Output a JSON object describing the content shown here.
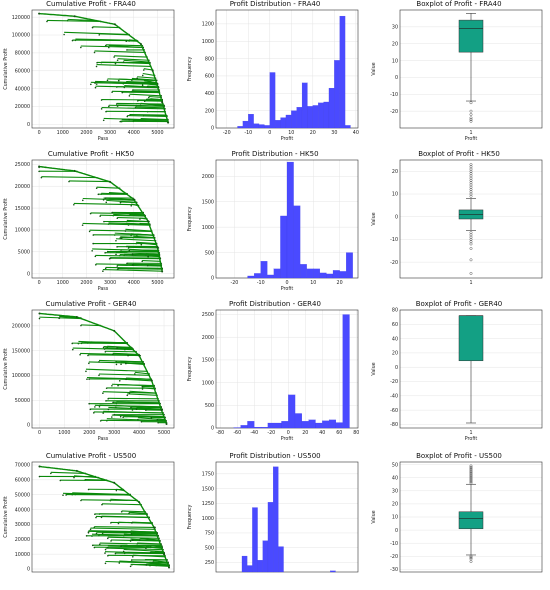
{
  "chart_data": [
    {
      "type": "line",
      "title": "Cumulative Profit - FRA40",
      "xlabel": "Pass",
      "ylabel": "Cumulative Profit",
      "xlim": [
        -300,
        5700
      ],
      "ylim": [
        -4000,
        128000
      ],
      "xticks": [
        0,
        1000,
        2000,
        3000,
        4000,
        5000
      ],
      "yticks": [
        0,
        20000,
        40000,
        60000,
        80000,
        100000,
        120000
      ],
      "color": "#0a8a0a",
      "series": [
        {
          "x": [
            0,
            1500,
            3200,
            4300,
            4800,
            5200,
            5450
          ],
          "y": [
            124000,
            121000,
            112000,
            90000,
            60000,
            25000,
            2000
          ]
        }
      ]
    },
    {
      "type": "bar",
      "title": "Profit Distribution - FRA40",
      "xlabel": "Profit",
      "ylabel": "Frequency",
      "xlim": [
        -25,
        41
      ],
      "ylim": [
        0,
        1360
      ],
      "xticks": [
        -20,
        -10,
        0,
        10,
        20,
        30,
        40
      ],
      "yticks": [
        0,
        200,
        400,
        600,
        800,
        1000,
        1200
      ],
      "color": "#4a4aff",
      "bins": [
        [
          -20,
          -17.5,
          0
        ],
        [
          -17.5,
          -15,
          0
        ],
        [
          -15,
          -12.5,
          20
        ],
        [
          -12.5,
          -10,
          80
        ],
        [
          -10,
          -7.5,
          160
        ],
        [
          -7.5,
          -5,
          50
        ],
        [
          -5,
          -2.5,
          40
        ],
        [
          -2.5,
          0,
          30
        ],
        [
          0,
          2.5,
          640
        ],
        [
          2.5,
          5,
          90
        ],
        [
          5,
          7.5,
          120
        ],
        [
          7.5,
          10,
          150
        ],
        [
          10,
          12.5,
          200
        ],
        [
          12.5,
          15,
          240
        ],
        [
          15,
          17.5,
          520
        ],
        [
          17.5,
          20,
          250
        ],
        [
          20,
          22.5,
          260
        ],
        [
          22.5,
          25,
          290
        ],
        [
          25,
          27.5,
          300
        ],
        [
          27.5,
          30,
          460
        ],
        [
          30,
          32.5,
          780
        ],
        [
          32.5,
          35,
          1290
        ],
        [
          35,
          37.5,
          30
        ]
      ]
    },
    {
      "type": "box",
      "title": "Boxplot of Profit - FRA40",
      "xlabel": "Profit",
      "ylabel": "Value",
      "ylim": [
        -30,
        40
      ],
      "yticks": [
        -20,
        -10,
        0,
        10,
        20,
        30
      ],
      "category": "1",
      "box": {
        "q1": 15,
        "median": 29,
        "q3": 34,
        "whisker_low": -14,
        "whisker_high": 38
      },
      "outliers": [
        -15,
        -20,
        -22,
        -24,
        -25,
        -26
      ],
      "color": "#13a084"
    },
    {
      "type": "line",
      "title": "Cumulative Profit - HK50",
      "xlabel": "Pass",
      "ylabel": "Cumulative Profit",
      "xlim": [
        -300,
        5700
      ],
      "ylim": [
        -1000,
        26000
      ],
      "xticks": [
        0,
        1000,
        2000,
        3000,
        4000,
        5000
      ],
      "yticks": [
        0,
        5000,
        10000,
        15000,
        20000,
        25000
      ],
      "color": "#0a8a0a",
      "series": [
        {
          "x": [
            0,
            1500,
            3000,
            4000,
            4600,
            5000,
            5200
          ],
          "y": [
            24500,
            23500,
            21000,
            17000,
            12000,
            6000,
            500
          ]
        }
      ]
    },
    {
      "type": "bar",
      "title": "Profit Distribution - HK50",
      "xlabel": "Profit",
      "ylabel": "Frequency",
      "xlim": [
        -27,
        27
      ],
      "ylim": [
        0,
        2320
      ],
      "xticks": [
        -20,
        -10,
        0,
        10,
        20
      ],
      "yticks": [
        0,
        500,
        1000,
        1500,
        2000
      ],
      "color": "#4a4aff",
      "bins": [
        [
          -20,
          -17.5,
          0
        ],
        [
          -17.5,
          -15,
          0
        ],
        [
          -15,
          -12.5,
          40
        ],
        [
          -12.5,
          -10,
          90
        ],
        [
          -10,
          -7.5,
          330
        ],
        [
          -7.5,
          -5,
          60
        ],
        [
          -5,
          -2.5,
          180
        ],
        [
          -2.5,
          0,
          1220
        ],
        [
          0,
          2.5,
          2280
        ],
        [
          2.5,
          5,
          1420
        ],
        [
          5,
          7.5,
          270
        ],
        [
          7.5,
          10,
          180
        ],
        [
          10,
          12.5,
          180
        ],
        [
          12.5,
          15,
          100
        ],
        [
          15,
          17.5,
          80
        ],
        [
          17.5,
          20,
          150
        ],
        [
          20,
          22.5,
          130
        ],
        [
          22.5,
          25,
          500
        ]
      ]
    },
    {
      "type": "box",
      "title": "Boxplot of Profit - HK50",
      "xlabel": "",
      "ylabel": "Value",
      "ylim": [
        -27,
        25
      ],
      "yticks": [
        -20,
        -10,
        0,
        10,
        20
      ],
      "category": "1",
      "box": {
        "q1": -1,
        "median": 1,
        "q3": 3,
        "whisker_low": -6,
        "whisker_high": 8
      },
      "outliers": [
        9,
        10,
        11,
        12,
        13,
        14,
        15,
        16,
        17,
        18,
        19,
        20,
        21,
        22,
        23,
        -7,
        -8,
        -9,
        -10,
        -11,
        -12,
        -14,
        -19,
        -25
      ],
      "color": "#13a084"
    },
    {
      "type": "line",
      "title": "Cumulative Profit - GER40",
      "xlabel": "Pass",
      "ylabel": "Cumulative Profit",
      "xlim": [
        -300,
        5400
      ],
      "ylim": [
        -6000,
        232000
      ],
      "xticks": [
        0,
        1000,
        2000,
        3000,
        4000,
        5000
      ],
      "yticks": [
        0,
        50000,
        100000,
        150000,
        200000
      ],
      "color": "#0a8a0a",
      "series": [
        {
          "x": [
            0,
            1500,
            3000,
            4000,
            4500,
            4900,
            5100
          ],
          "y": [
            225000,
            218000,
            190000,
            140000,
            90000,
            30000,
            2000
          ]
        }
      ]
    },
    {
      "type": "bar",
      "title": "Profit Distribution - GER40",
      "xlabel": "Profit",
      "ylabel": "Frequency",
      "xlim": [
        -85,
        82
      ],
      "ylim": [
        0,
        2600
      ],
      "xticks": [
        -80,
        -60,
        -40,
        -20,
        0,
        20,
        40,
        60,
        80
      ],
      "yticks": [
        0,
        500,
        1000,
        1500,
        2000,
        2500
      ],
      "color": "#4a4aff",
      "bins": [
        [
          -80,
          -72,
          0
        ],
        [
          -72,
          -64,
          0
        ],
        [
          -64,
          -56,
          10
        ],
        [
          -56,
          -48,
          60
        ],
        [
          -48,
          -40,
          150
        ],
        [
          -40,
          -32,
          20
        ],
        [
          -32,
          -24,
          20
        ],
        [
          -24,
          -16,
          110
        ],
        [
          -16,
          -8,
          110
        ],
        [
          -8,
          0,
          150
        ],
        [
          0,
          8,
          730
        ],
        [
          8,
          16,
          320
        ],
        [
          16,
          24,
          150
        ],
        [
          24,
          32,
          180
        ],
        [
          32,
          40,
          110
        ],
        [
          40,
          48,
          160
        ],
        [
          48,
          56,
          180
        ],
        [
          56,
          64,
          120
        ],
        [
          64,
          72,
          2500
        ]
      ]
    },
    {
      "type": "box",
      "title": "Boxplot of Profit - GER40",
      "xlabel": "Profit",
      "ylabel": "Value",
      "ylim": [
        -85,
        80
      ],
      "yticks": [
        -80,
        -60,
        -40,
        -20,
        0,
        20,
        40,
        60,
        80
      ],
      "category": "1",
      "box": {
        "q1": 9,
        "median": 72,
        "q3": 72,
        "whisker_low": -78,
        "whisker_high": 72
      },
      "outliers": [],
      "color": "#13a084"
    },
    {
      "type": "line",
      "title": "Cumulative Profit - US500",
      "xlabel": "",
      "ylabel": "Cumulative Profit",
      "xlim": [
        -300,
        5400
      ],
      "ylim": [
        -2000,
        72000
      ],
      "xticks": [],
      "yticks": [
        0,
        10000,
        20000,
        30000,
        40000,
        50000,
        60000,
        70000
      ],
      "color": "#0a8a0a",
      "series": [
        {
          "x": [
            0,
            1500,
            3000,
            4000,
            4600,
            5000,
            5200
          ],
          "y": [
            69000,
            66000,
            58000,
            45000,
            28000,
            10000,
            1000
          ]
        }
      ]
    },
    {
      "type": "bar",
      "title": "Profit Distribution - US500",
      "xlabel": "",
      "ylabel": "Frequency",
      "xlim": [
        -30,
        52
      ],
      "ylim": [
        90,
        1950
      ],
      "xticks": [],
      "yticks": [
        250,
        500,
        750,
        1000,
        1250,
        1500,
        1750
      ],
      "color": "#4a4aff",
      "bins": [
        [
          -15,
          -12,
          360
        ],
        [
          -12,
          -9,
          200
        ],
        [
          -9,
          -6,
          1180
        ],
        [
          -6,
          -3,
          290
        ],
        [
          -3,
          0,
          620
        ],
        [
          0,
          3,
          1270
        ],
        [
          3,
          6,
          1870
        ],
        [
          6,
          9,
          520
        ],
        [
          36,
          39,
          110
        ],
        [
          39,
          42,
          90
        ]
      ]
    },
    {
      "type": "box",
      "title": "Boxplot of Profit - US500",
      "xlabel": "",
      "ylabel": "Value",
      "ylim": [
        -32,
        52
      ],
      "yticks": [
        -30,
        -20,
        -10,
        0,
        10,
        20,
        30,
        40,
        50
      ],
      "category": "",
      "box": {
        "q1": 1,
        "median": 9,
        "q3": 14,
        "whisker_low": -19,
        "whisker_high": 35
      },
      "outliers": [
        36,
        37,
        38,
        39,
        40,
        41,
        42,
        43,
        44,
        45,
        46,
        47,
        48,
        49,
        -20,
        -21,
        -22,
        -24
      ],
      "color": "#13a084"
    }
  ]
}
